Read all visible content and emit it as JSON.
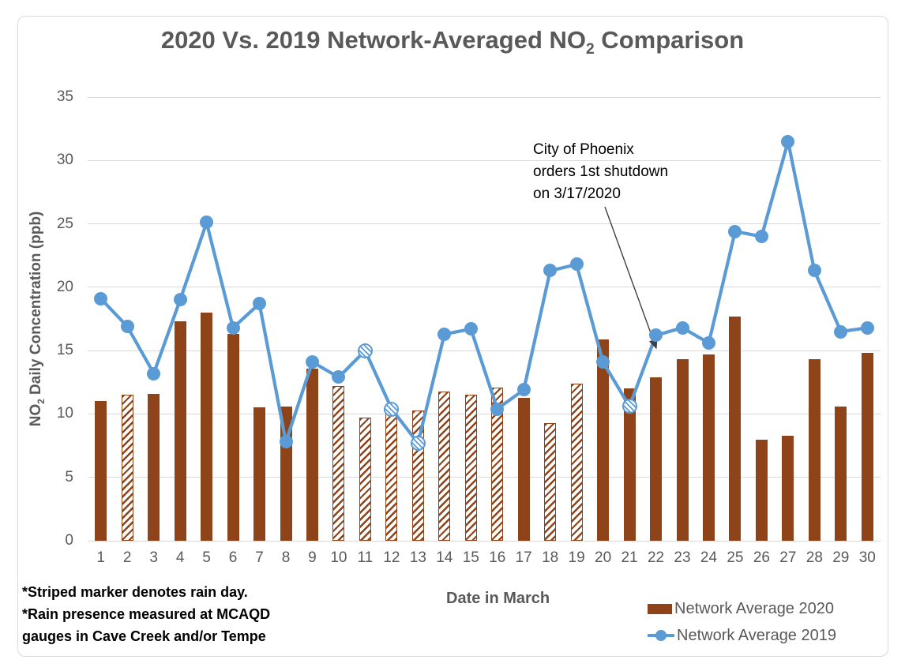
{
  "title": {
    "prefix": "2020 Vs. 2019 Network-Averaged NO",
    "sub": "2",
    "suffix": " Comparison"
  },
  "y_axis": {
    "label_prefix": "NO",
    "label_sub": "2",
    "label_suffix": " Daily Concentration (ppb)"
  },
  "x_axis": {
    "label": "Date in March"
  },
  "annotation": {
    "line1": "City of Phoenix",
    "line2": "orders 1st shutdown",
    "line3": "on 3/17/2020"
  },
  "footnote": {
    "line1": "*Striped marker denotes rain day.",
    "line2": "*Rain presence measured at MCAQD",
    "line3": "gauges in Cave Creek and/or Tempe"
  },
  "legend": {
    "items": [
      {
        "label": "Network Average 2020",
        "color": "#8F4318",
        "swatch": "bar"
      },
      {
        "label": "Network Average 2019",
        "color": "#5B9BD5",
        "swatch": "line-with-dot"
      }
    ]
  },
  "colors": {
    "bar_2020": "#8F4318",
    "line_2019": "#5B9BD5",
    "gridline": "#D9D9D9",
    "axis_text": "#595959",
    "title_text": "#595959",
    "annotation_arrow": "#404040",
    "chart_border": "#D9D9D9",
    "background": "#FFFFFF"
  },
  "chart_data": {
    "type": "combo",
    "title": "2020 Vs. 2019 Network-Averaged NO2 Comparison",
    "xlabel": "Date in March",
    "ylabel": "NO2 Daily Concentration (ppb)",
    "ylim": [
      0,
      35
    ],
    "yticks": [
      0,
      5,
      10,
      15,
      20,
      25,
      30,
      35
    ],
    "grid": true,
    "legend_position": "bottom-right",
    "categories": [
      1,
      2,
      3,
      4,
      5,
      6,
      7,
      8,
      9,
      10,
      11,
      12,
      13,
      14,
      15,
      16,
      17,
      18,
      19,
      20,
      21,
      22,
      23,
      24,
      25,
      26,
      27,
      28,
      29,
      30
    ],
    "series": [
      {
        "name": "Network Average 2020",
        "chart_type": "bar",
        "color": "#8F4318",
        "values": [
          11.0,
          11.5,
          11.6,
          17.3,
          18.0,
          16.3,
          10.5,
          10.6,
          13.6,
          12.2,
          9.7,
          10.2,
          10.3,
          11.8,
          11.5,
          12.1,
          11.3,
          9.3,
          12.4,
          15.9,
          12.0,
          12.9,
          14.3,
          14.7,
          17.7,
          8.0,
          8.3,
          14.3,
          10.6,
          14.8
        ],
        "rain_day_striped": [
          2,
          10,
          11,
          12,
          13,
          14,
          15,
          16,
          18,
          19
        ]
      },
      {
        "name": "Network Average 2019",
        "chart_type": "line",
        "color": "#5B9BD5",
        "values": [
          19.1,
          16.9,
          13.2,
          19.0,
          25.1,
          16.8,
          18.7,
          7.8,
          14.1,
          12.9,
          15.0,
          10.4,
          7.7,
          16.3,
          16.7,
          10.4,
          11.9,
          21.3,
          21.8,
          14.1,
          10.6,
          16.2,
          16.8,
          15.6,
          24.4,
          24.0,
          31.5,
          21.3,
          16.5,
          16.8
        ],
        "rain_day_striped": [
          11,
          12,
          13,
          21
        ]
      }
    ],
    "annotation": {
      "text": "City of Phoenix orders 1st shutdown on 3/17/2020",
      "arrow_points_near_date": 22
    }
  }
}
